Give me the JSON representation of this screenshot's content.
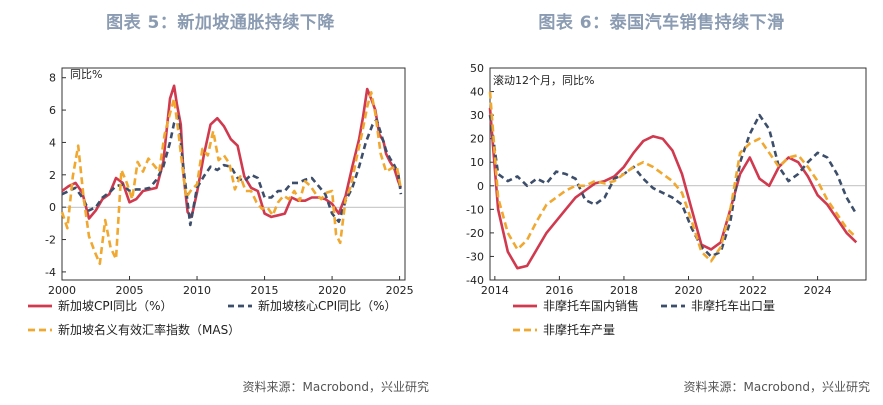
{
  "panels": [
    {
      "title": "图表 5：新加坡通胀持续下降",
      "source": "资料来源：Macrobond，兴业研究"
    },
    {
      "title": "图表 6：泰国汽车销售持续下滑",
      "source": "资料来源：Macrobond，兴业研究"
    }
  ],
  "chart_data": [
    {
      "type": "line",
      "title": "图表 5：新加坡通胀持续下降",
      "ylabel": "同比%",
      "xlim": [
        2000,
        2025.4
      ],
      "ylim": [
        -4.5,
        8.6
      ],
      "yticks": [
        -4,
        -2,
        0,
        2,
        4,
        6,
        8
      ],
      "xticks": [
        2000,
        2005,
        2010,
        2015,
        2020,
        2025
      ],
      "grid": false,
      "legend_position": "bottom",
      "series": [
        {
          "name": "新加坡CPI同比（%）",
          "color": "#d0394e",
          "dash": "solid",
          "x": [
            2000,
            2000.5,
            2001,
            2001.5,
            2002,
            2002.5,
            2003,
            2003.5,
            2004,
            2004.5,
            2005,
            2005.5,
            2006,
            2006.5,
            2007,
            2007.5,
            2008,
            2008.3,
            2008.5,
            2008.8,
            2009,
            2009.3,
            2009.6,
            2010,
            2010.5,
            2011,
            2011.5,
            2012,
            2012.5,
            2013,
            2013.5,
            2014,
            2014.5,
            2015,
            2015.5,
            2016,
            2016.5,
            2017,
            2017.5,
            2018,
            2018.5,
            2019,
            2019.5,
            2020,
            2020.5,
            2021,
            2021.5,
            2022,
            2022.3,
            2022.6,
            2022.9,
            2023.2,
            2023.5,
            2023.8,
            2024,
            2024.3,
            2024.6,
            2024.9,
            2025.1
          ],
          "values": [
            1.0,
            1.3,
            1.5,
            0.9,
            -0.7,
            -0.2,
            0.5,
            0.8,
            1.8,
            1.5,
            0.3,
            0.5,
            1.0,
            1.1,
            1.2,
            2.8,
            6.7,
            7.5,
            6.4,
            5.1,
            2.0,
            -0.3,
            -0.6,
            0.9,
            3.2,
            5.1,
            5.5,
            5.0,
            4.2,
            3.8,
            1.9,
            1.2,
            1.0,
            -0.4,
            -0.6,
            -0.5,
            -0.4,
            0.6,
            0.4,
            0.4,
            0.6,
            0.6,
            0.5,
            0.2,
            -0.4,
            0.7,
            2.5,
            4.2,
            5.6,
            7.3,
            6.7,
            6.0,
            4.5,
            4.1,
            3.3,
            2.8,
            2.4,
            1.6,
            1.2
          ]
        },
        {
          "name": "新加坡核心CPI同比（%）",
          "color": "#3d4e6b",
          "dash": "6,4",
          "x": [
            2000,
            2000.5,
            2001,
            2001.5,
            2002,
            2002.5,
            2003,
            2003.5,
            2004,
            2004.5,
            2005,
            2005.5,
            2006,
            2006.5,
            2007,
            2007.5,
            2008,
            2008.3,
            2008.6,
            2009,
            2009.5,
            2010,
            2010.5,
            2011,
            2011.5,
            2012,
            2012.5,
            2013,
            2013.5,
            2014,
            2014.5,
            2015,
            2015.5,
            2016,
            2016.5,
            2017,
            2017.5,
            2018,
            2018.5,
            2019,
            2019.5,
            2020,
            2020.5,
            2021,
            2021.5,
            2022,
            2022.5,
            2023,
            2023.3,
            2023.6,
            2024,
            2024.3,
            2024.6,
            2024.9,
            2025.1
          ],
          "values": [
            0.8,
            1.0,
            1.2,
            0.6,
            -0.2,
            0.0,
            0.6,
            0.9,
            1.3,
            1.4,
            1.0,
            1.1,
            1.1,
            1.2,
            1.7,
            2.5,
            4.0,
            5.2,
            5.6,
            2.4,
            -1.1,
            1.2,
            1.9,
            2.5,
            2.3,
            2.6,
            2.5,
            1.8,
            1.6,
            2.0,
            1.8,
            0.6,
            0.6,
            1.0,
            1.0,
            1.5,
            1.5,
            1.7,
            1.8,
            1.3,
            0.8,
            -0.4,
            -0.9,
            0.4,
            1.2,
            2.5,
            4.0,
            5.1,
            5.4,
            4.6,
            3.5,
            3.0,
            2.6,
            2.1,
            0.8
          ]
        },
        {
          "name": "新加坡名义有效汇率指数（MAS）",
          "color": "#f0a830",
          "dash": "7,4",
          "x": [
            2000,
            2000.4,
            2000.8,
            2001.2,
            2001.6,
            2002,
            2002.4,
            2002.8,
            2003.2,
            2003.6,
            2004,
            2004.4,
            2004.8,
            2005.2,
            2005.6,
            2006,
            2006.4,
            2006.8,
            2007.2,
            2007.6,
            2008,
            2008.3,
            2008.6,
            2008.9,
            2009.2,
            2009.6,
            2010,
            2010.4,
            2010.8,
            2011.2,
            2011.6,
            2012,
            2012.4,
            2012.8,
            2013.2,
            2013.6,
            2014,
            2014.4,
            2014.8,
            2015.2,
            2015.6,
            2016,
            2016.4,
            2016.8,
            2017.2,
            2017.6,
            2018,
            2018.4,
            2018.8,
            2019.2,
            2019.6,
            2020,
            2020.3,
            2020.6,
            2021,
            2021.4,
            2021.8,
            2022.2,
            2022.6,
            2022.9,
            2023.2,
            2023.6,
            2024,
            2024.4,
            2024.8,
            2025.1
          ],
          "values": [
            -0.3,
            -1.3,
            1.9,
            3.8,
            0.6,
            -1.8,
            -2.7,
            -3.5,
            -0.8,
            -2.5,
            -3.2,
            2.3,
            1.5,
            0.5,
            2.8,
            2.2,
            3.0,
            2.6,
            2.2,
            4.5,
            5.8,
            6.7,
            4.8,
            2.6,
            0.6,
            1.1,
            1.4,
            3.6,
            3.2,
            4.7,
            2.9,
            3.2,
            2.7,
            1.1,
            1.9,
            1.0,
            1.0,
            0.3,
            -0.1,
            0.0,
            -0.5,
            0.3,
            0.7,
            0.5,
            1.0,
            0.4,
            1.6,
            1.3,
            0.8,
            0.5,
            0.9,
            1.0,
            -1.7,
            -2.2,
            0.5,
            1.3,
            3.0,
            4.5,
            6.2,
            7.1,
            5.8,
            3.3,
            2.2,
            2.4,
            2.5,
            1.1
          ]
        }
      ]
    },
    {
      "type": "line",
      "title": "图表 6：泰国汽车销售持续下滑",
      "ylabel": "滚动12个月，同比%",
      "xlim": [
        2013.85,
        2025.5
      ],
      "ylim": [
        -40,
        50
      ],
      "yticks": [
        -40,
        -30,
        -20,
        -10,
        0,
        10,
        20,
        30,
        40,
        50
      ],
      "xticks": [
        2014,
        2016,
        2018,
        2020,
        2022,
        2024
      ],
      "grid": false,
      "legend_position": "bottom",
      "series": [
        {
          "name": "非摩托车国内销售",
          "color": "#d0394e",
          "dash": "solid",
          "x": [
            2013.85,
            2014.1,
            2014.4,
            2014.7,
            2015.0,
            2015.3,
            2015.6,
            2015.9,
            2016.2,
            2016.5,
            2016.8,
            2017.1,
            2017.4,
            2017.7,
            2018.0,
            2018.3,
            2018.6,
            2018.9,
            2019.2,
            2019.5,
            2019.8,
            2020.1,
            2020.4,
            2020.7,
            2021.0,
            2021.3,
            2021.6,
            2021.9,
            2022.2,
            2022.5,
            2022.8,
            2023.1,
            2023.4,
            2023.7,
            2024.0,
            2024.3,
            2024.6,
            2024.9,
            2025.2
          ],
          "values": [
            33,
            -10,
            -28,
            -35,
            -34,
            -27,
            -20,
            -15,
            -10,
            -5,
            -2,
            1,
            2,
            4,
            8,
            14,
            19,
            21,
            20,
            15,
            5,
            -10,
            -25,
            -27,
            -24,
            -10,
            5,
            12,
            3,
            0,
            8,
            12,
            10,
            4,
            -4,
            -8,
            -14,
            -20,
            -24
          ]
        },
        {
          "name": "非摩托车出口量",
          "color": "#3d4e6b",
          "dash": "6,4",
          "x": [
            2013.85,
            2014.1,
            2014.4,
            2014.7,
            2015.0,
            2015.3,
            2015.6,
            2015.9,
            2016.2,
            2016.5,
            2016.8,
            2017.1,
            2017.4,
            2017.7,
            2018.0,
            2018.3,
            2018.6,
            2018.9,
            2019.2,
            2019.5,
            2019.8,
            2020.1,
            2020.4,
            2020.7,
            2021.0,
            2021.3,
            2021.6,
            2021.9,
            2022.2,
            2022.5,
            2022.8,
            2023.1,
            2023.4,
            2023.7,
            2024.0,
            2024.3,
            2024.6,
            2024.9,
            2025.2
          ],
          "values": [
            30,
            5,
            2,
            4,
            0,
            3,
            1,
            6,
            5,
            3,
            -6,
            -8,
            -5,
            3,
            5,
            8,
            3,
            -1,
            -3,
            -5,
            -8,
            -18,
            -26,
            -30,
            -28,
            -15,
            10,
            22,
            30,
            24,
            8,
            2,
            5,
            10,
            14,
            12,
            5,
            -5,
            -12
          ]
        },
        {
          "name": "非摩托车产量",
          "color": "#f0a830",
          "dash": "7,4",
          "x": [
            2013.85,
            2014.1,
            2014.4,
            2014.7,
            2015.0,
            2015.3,
            2015.6,
            2015.9,
            2016.2,
            2016.5,
            2016.8,
            2017.1,
            2017.4,
            2017.7,
            2018.0,
            2018.3,
            2018.6,
            2018.9,
            2019.2,
            2019.5,
            2019.8,
            2020.1,
            2020.4,
            2020.7,
            2021.0,
            2021.3,
            2021.6,
            2021.9,
            2022.2,
            2022.5,
            2022.8,
            2023.1,
            2023.4,
            2023.7,
            2024.0,
            2024.3,
            2024.6,
            2024.9,
            2025.2
          ],
          "values": [
            40,
            -5,
            -20,
            -27,
            -23,
            -15,
            -8,
            -5,
            -2,
            0,
            0,
            2,
            1,
            2,
            5,
            8,
            10,
            8,
            5,
            2,
            -3,
            -15,
            -28,
            -32,
            -26,
            -10,
            14,
            18,
            20,
            14,
            8,
            12,
            13,
            8,
            2,
            -6,
            -12,
            -18,
            -22
          ]
        }
      ]
    }
  ]
}
